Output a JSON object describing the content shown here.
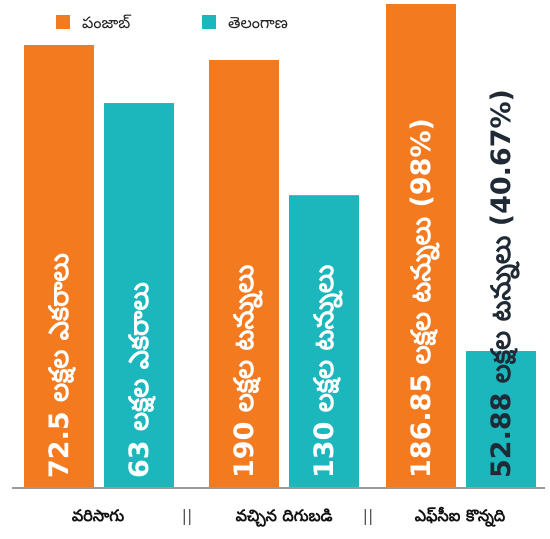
{
  "chart_data": {
    "type": "bar",
    "title": "",
    "xlabel": "",
    "ylabel": "",
    "categories": [
      "వరిసాగు",
      "వచ్చిన దిగుబడి",
      "ఎఫ్‌సీఐ కొన్నది"
    ],
    "series": [
      {
        "name": "పంజాబ్",
        "color": "#F47A20",
        "values": [
          72.5,
          190,
          186.85
        ],
        "labels": [
          "72.5 లక్షల ఎకరాలు",
          "190 లక్షల టన్నులు",
          "186.85 లక్షల టన్నులు (98%)"
        ]
      },
      {
        "name": "తెలంగాణ",
        "color": "#1BB7BD",
        "values": [
          63,
          130,
          52.88
        ],
        "labels": [
          "63 లక్షల ఎకరాలు",
          "130 లక్షల టన్నులు",
          "52.88 లక్షల టన్నులు (40.67%)"
        ]
      }
    ],
    "legend_position": "top-left",
    "grid": false,
    "separator": "||"
  }
}
